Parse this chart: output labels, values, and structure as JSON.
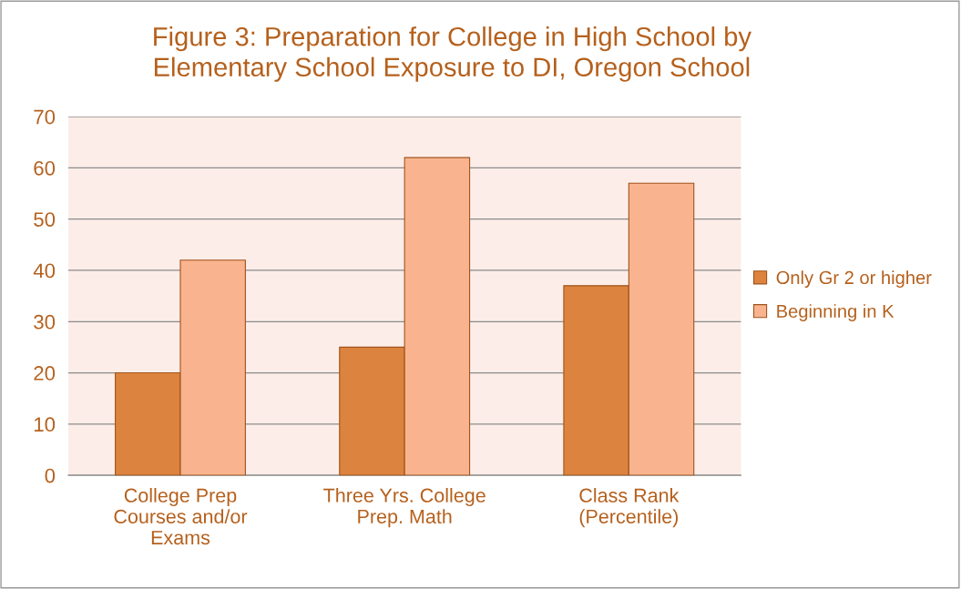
{
  "chart_data": {
    "type": "bar",
    "title": "Figure 3: Preparation for College in High School by\nElementary School Exposure to DI, Oregon School",
    "categories": [
      "College Prep\nCourses and/or\nExams",
      "Three Yrs. College\nPrep. Math",
      "Class Rank\n(Percentile)"
    ],
    "series": [
      {
        "name": "Only Gr 2 or higher",
        "color": "#dc843f",
        "values": [
          20,
          25,
          37
        ]
      },
      {
        "name": "Beginning in K",
        "color": "#f9b48f",
        "values": [
          42,
          62,
          57
        ]
      }
    ],
    "ylim": [
      0,
      70
    ],
    "yticks": [
      0,
      10,
      20,
      30,
      40,
      50,
      60,
      70
    ],
    "grid": "y",
    "legend": "right"
  }
}
